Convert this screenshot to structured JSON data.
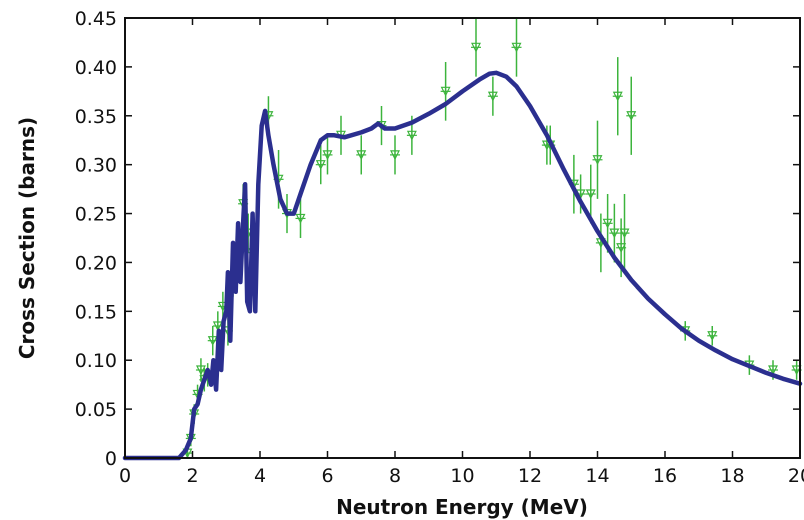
{
  "chart_data": {
    "type": "line",
    "title": "",
    "xlabel": "Neutron Energy (MeV)",
    "ylabel": "Cross Section (barns)",
    "xlim": [
      0,
      20
    ],
    "ylim": [
      0,
      0.45
    ],
    "xticks": [
      0,
      2,
      4,
      6,
      8,
      10,
      12,
      14,
      16,
      18,
      20
    ],
    "yticks": [
      "0",
      "0.05",
      "0.10",
      "0.15",
      "0.20",
      "0.25",
      "0.30",
      "0.35",
      "0.40",
      "0.45"
    ],
    "grid": false,
    "legend": "none",
    "colors": {
      "curve": "#2b2f8f",
      "points": "#3cb43c",
      "axes": "#111111"
    },
    "series": [
      {
        "kind": "curve",
        "x": [
          0,
          1.0,
          1.6,
          1.8,
          1.95,
          2.05,
          2.15,
          2.25,
          2.35,
          2.45,
          2.55,
          2.62,
          2.7,
          2.78,
          2.85,
          2.92,
          3.0,
          3.05,
          3.12,
          3.2,
          3.28,
          3.35,
          3.42,
          3.5,
          3.56,
          3.62,
          3.7,
          3.78,
          3.86,
          3.95,
          4.05,
          4.15,
          4.25,
          4.4,
          4.6,
          4.8,
          5.0,
          5.2,
          5.5,
          5.8,
          6.0,
          6.2,
          6.5,
          7.0,
          7.3,
          7.5,
          7.7,
          8.0,
          8.5,
          9.0,
          9.5,
          10.0,
          10.5,
          10.8,
          11.0,
          11.3,
          11.6,
          12.0,
          12.5,
          13.0,
          13.5,
          14.0,
          14.5,
          15.0,
          15.5,
          16.0,
          16.5,
          17.0,
          17.5,
          18.0,
          18.5,
          19.0,
          19.5,
          20.0
        ],
        "y": [
          0,
          0,
          0.0,
          0.008,
          0.02,
          0.05,
          0.055,
          0.07,
          0.08,
          0.09,
          0.075,
          0.1,
          0.07,
          0.13,
          0.09,
          0.14,
          0.15,
          0.19,
          0.12,
          0.22,
          0.17,
          0.24,
          0.18,
          0.24,
          0.28,
          0.16,
          0.15,
          0.25,
          0.15,
          0.28,
          0.34,
          0.355,
          0.33,
          0.3,
          0.265,
          0.25,
          0.25,
          0.27,
          0.3,
          0.325,
          0.33,
          0.33,
          0.328,
          0.333,
          0.337,
          0.342,
          0.337,
          0.337,
          0.343,
          0.352,
          0.362,
          0.375,
          0.387,
          0.393,
          0.394,
          0.39,
          0.38,
          0.36,
          0.33,
          0.295,
          0.262,
          0.232,
          0.205,
          0.182,
          0.163,
          0.147,
          0.132,
          0.12,
          0.11,
          0.101,
          0.094,
          0.087,
          0.081,
          0.076
        ]
      },
      {
        "kind": "points",
        "x": [
          1.85,
          1.95,
          2.05,
          2.15,
          2.25,
          2.35,
          2.45,
          2.6,
          2.75,
          2.9,
          3.05,
          3.2,
          3.35,
          3.5,
          3.65,
          3.8,
          4.25,
          4.55,
          4.8,
          5.2,
          5.8,
          6.0,
          6.4,
          7.0,
          7.6,
          8.0,
          8.5,
          9.5,
          10.4,
          10.9,
          11.6,
          12.5,
          12.6,
          13.3,
          13.5,
          13.8,
          14.0,
          14.1,
          14.3,
          14.5,
          14.6,
          14.7,
          14.8,
          15.0,
          16.6,
          17.4,
          18.5,
          19.2,
          19.9
        ],
        "y": [
          0.005,
          0.02,
          0.045,
          0.065,
          0.09,
          0.08,
          0.085,
          0.12,
          0.135,
          0.155,
          0.13,
          0.18,
          0.21,
          0.26,
          0.23,
          0.21,
          0.35,
          0.285,
          0.25,
          0.245,
          0.3,
          0.31,
          0.33,
          0.31,
          0.34,
          0.31,
          0.33,
          0.375,
          0.42,
          0.37,
          0.42,
          0.32,
          0.32,
          0.28,
          0.27,
          0.27,
          0.305,
          0.22,
          0.24,
          0.23,
          0.37,
          0.215,
          0.23,
          0.35,
          0.13,
          0.125,
          0.095,
          0.09,
          0.09
        ],
        "yerr": [
          0.005,
          0.008,
          0.01,
          0.01,
          0.012,
          0.012,
          0.012,
          0.015,
          0.015,
          0.015,
          0.015,
          0.015,
          0.02,
          0.02,
          0.02,
          0.02,
          0.02,
          0.03,
          0.02,
          0.02,
          0.02,
          0.02,
          0.02,
          0.02,
          0.02,
          0.02,
          0.02,
          0.03,
          0.03,
          0.02,
          0.03,
          0.02,
          0.02,
          0.03,
          0.02,
          0.03,
          0.04,
          0.03,
          0.03,
          0.03,
          0.04,
          0.03,
          0.04,
          0.04,
          0.01,
          0.01,
          0.01,
          0.01,
          0.01
        ]
      }
    ]
  }
}
